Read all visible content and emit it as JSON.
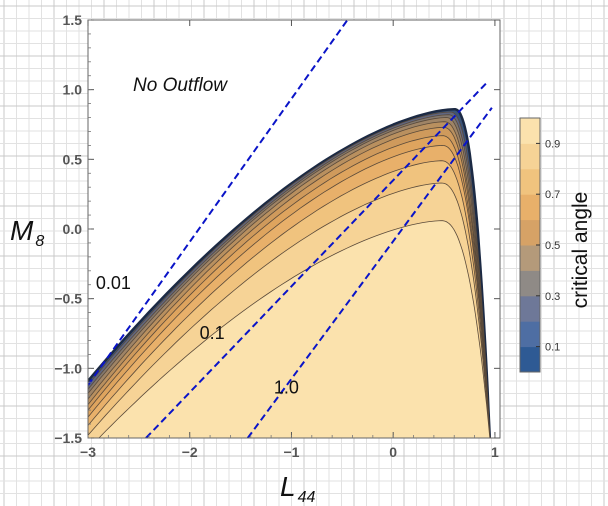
{
  "chart_data": {
    "type": "contour",
    "xlabel": "L",
    "xlabel_sub": "44",
    "ylabel": "M",
    "ylabel_sub": "8",
    "xlim": [
      -3,
      1.05
    ],
    "ylim": [
      -1.5,
      1.5
    ],
    "x_ticks": [
      -3,
      -2,
      -1,
      0,
      1
    ],
    "x_tick_labels": [
      "−3",
      "−2",
      "−1",
      "0",
      "1"
    ],
    "y_ticks": [
      -1.5,
      -1.0,
      -0.5,
      0.0,
      0.5,
      1.0,
      1.5
    ],
    "y_tick_labels": [
      "−1.5",
      "−1.0",
      "−0.5",
      "0.0",
      "0.5",
      "1.0",
      "1.5"
    ],
    "grid": "off",
    "region_label": "No Outflow",
    "colorbar": {
      "title": "critical angle",
      "ticks": [
        0.1,
        0.3,
        0.5,
        0.7,
        0.9
      ],
      "tick_labels": [
        "0.1",
        "0.3",
        "0.5",
        "0.7",
        "0.9"
      ],
      "range": [
        0,
        1
      ],
      "colors": [
        "#2e5a94",
        "#4e6ea3",
        "#6e7898",
        "#8f8a86",
        "#b49a7a",
        "#d6a266",
        "#e8b06a",
        "#f0c37e",
        "#f6d396",
        "#fbe2ad"
      ]
    },
    "contour_levels": [
      0.99,
      0.95,
      0.9,
      0.8,
      0.7,
      0.6,
      0.5,
      0.4,
      0.3,
      0.2,
      0.1
    ],
    "contour_peak_x": [
      0.47,
      0.47,
      0.47,
      0.48,
      0.48,
      0.49,
      0.5,
      0.52,
      0.54,
      0.56,
      0.6
    ],
    "contour_peak_y": [
      0.06,
      0.33,
      0.49,
      0.6,
      0.67,
      0.73,
      0.77,
      0.8,
      0.82,
      0.84,
      0.86
    ],
    "contour_left_y": [
      -1.58,
      -1.48,
      -1.41,
      -1.35,
      -1.3,
      -1.26,
      -1.22,
      -1.18,
      -1.15,
      -1.12,
      -1.09
    ],
    "dashed_lines": [
      {
        "label": "0.01",
        "x": [
          -3.0,
          -0.45
        ],
        "y": [
          -1.12,
          1.5
        ]
      },
      {
        "label": "0.1",
        "x": [
          -2.43,
          0.92
        ],
        "y": [
          -1.5,
          1.05
        ]
      },
      {
        "label": "1.0",
        "x": [
          -1.43,
          0.97
        ],
        "y": [
          -1.5,
          0.87
        ]
      }
    ],
    "line_labels": [
      {
        "text": "0.01",
        "x": -2.75,
        "y": -0.43
      },
      {
        "text": "0.1",
        "x": -1.78,
        "y": -0.79
      },
      {
        "text": "1.0",
        "x": -1.05,
        "y": -1.18
      }
    ],
    "colors": {
      "dashed": "#0a14c8",
      "outline": "#1c2a44",
      "contour": "#5a4a3a"
    }
  }
}
